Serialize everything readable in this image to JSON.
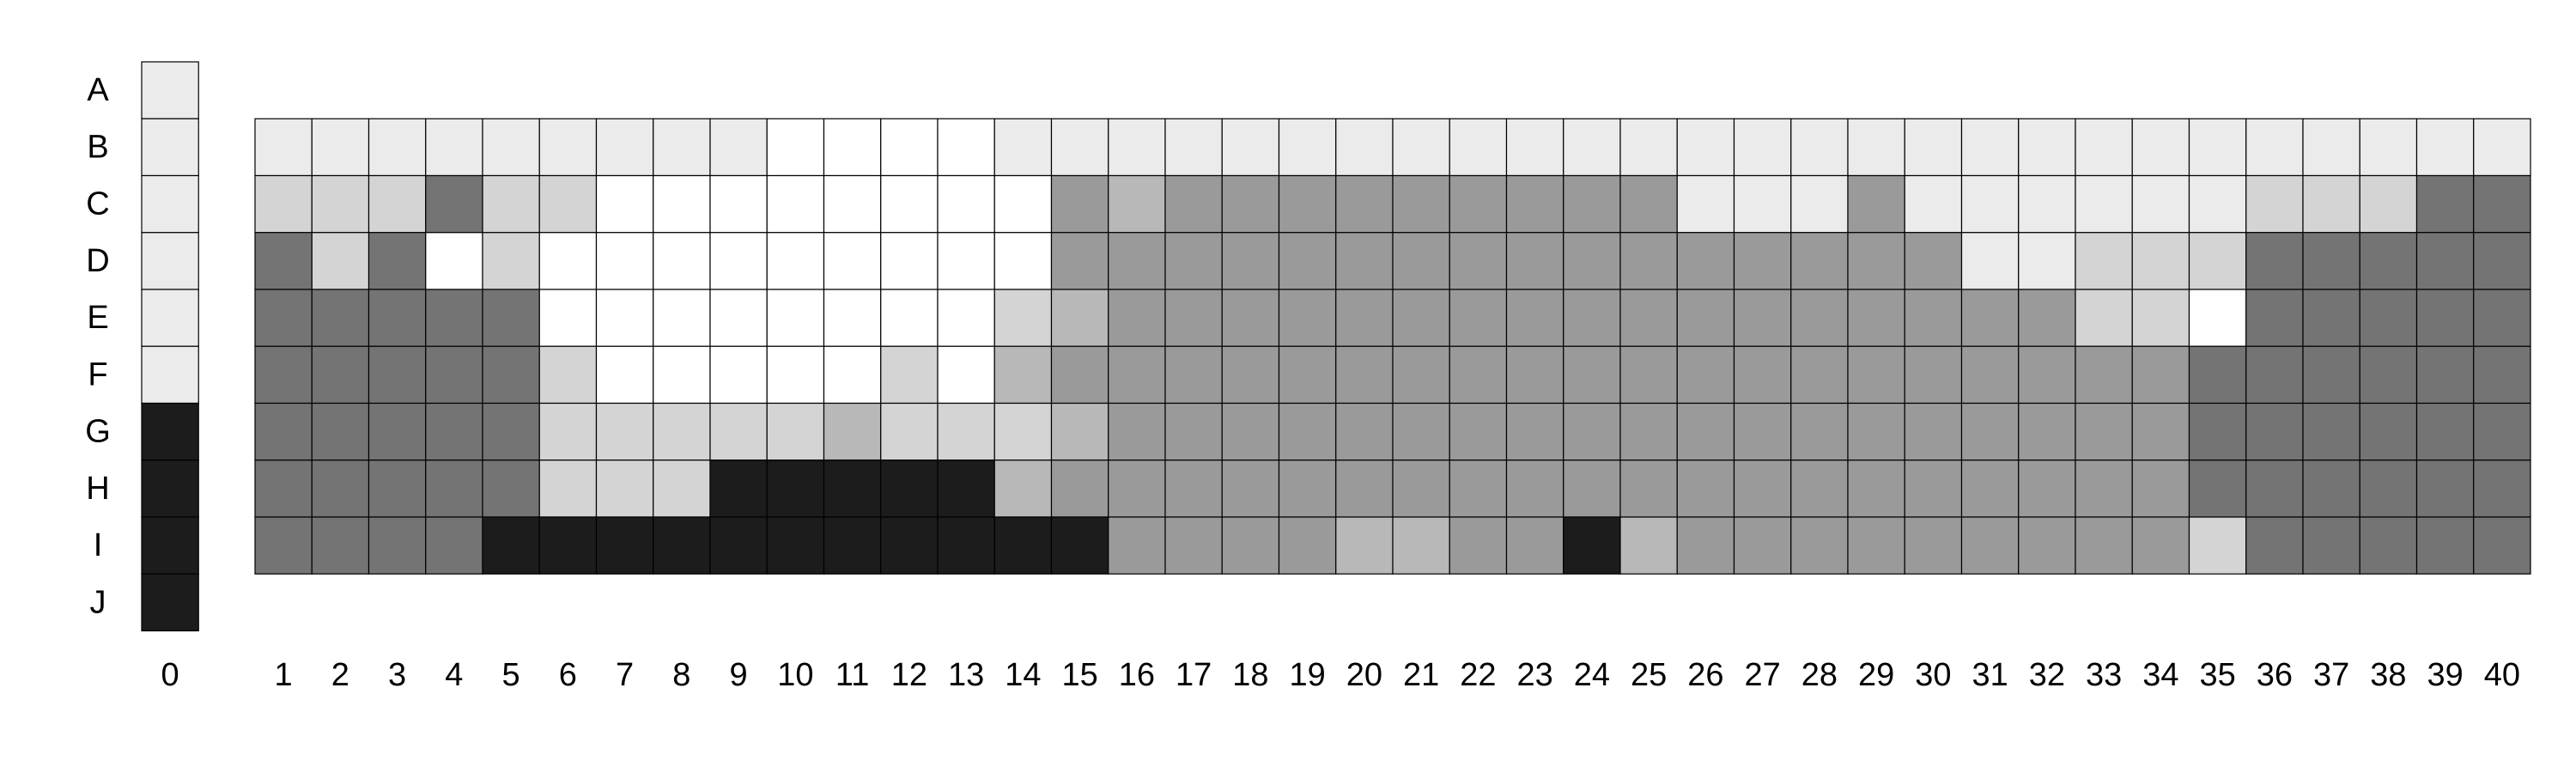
{
  "grid": {
    "row_labels": [
      "A",
      "B",
      "C",
      "D",
      "E",
      "F",
      "G",
      "H",
      "I",
      "J"
    ],
    "reference_column": {
      "label": "0",
      "values": [
        "W",
        "W",
        "W",
        "W",
        "W",
        "W",
        "K",
        "K",
        "K",
        "K"
      ]
    },
    "column_labels": [
      "1",
      "2",
      "3",
      "4",
      "5",
      "6",
      "7",
      "8",
      "9",
      "10",
      "11",
      "12",
      "13",
      "14",
      "15",
      "16",
      "17",
      "18",
      "19",
      "20",
      "21",
      "22",
      "23",
      "24",
      "25",
      "26",
      "27",
      "28",
      "29",
      "30",
      "31",
      "32",
      "33",
      "34",
      "35",
      "36",
      "37",
      "38",
      "39",
      "40"
    ],
    "rows": [
      {
        "row": "B",
        "values": "WWWWWWWWWEEEEWWWWWWWWWWWWWWWWWWWWWWWWWWW"
      },
      {
        "row": "C",
        "values": "LLLDLLEEEEEEEEGSGGGGGGGGGWWWGWWWWWWLLLDD"
      },
      {
        "row": "D",
        "values": "DLDELEEEEEEEEEGGGGGGGGGGGGGGGGWWLLLDDDDD"
      },
      {
        "row": "E",
        "values": "DDDDDEEEEEEEELSGGGGGGGGGGGGGGGGGLLEDDDDD"
      },
      {
        "row": "F",
        "values": "DDDDDLEEEEELESGGGGGGGGGGGGGGGGGGGGDDDDDD"
      },
      {
        "row": "G",
        "values": "DDDDDLLLLLSLLLSGGGGGGGGGGGGGGGGGGGDDDDDD"
      },
      {
        "row": "H",
        "values": "DDDDDLLLKKKKKSGGGGGGGGGGGGGGGGGGGGDDDDDD"
      },
      {
        "row": "I",
        "values": "DDDDKKKKKKKKKKKGGGGSSGGKSGGGGGGGGGLDDDDD"
      }
    ]
  },
  "legend": {
    "E": "#ffffff",
    "W": "#ebebeb",
    "L": "#d4d4d4",
    "S": "#b8b8b8",
    "G": "#9a9a9a",
    "D": "#747474",
    "K": "#1c1c1c"
  }
}
